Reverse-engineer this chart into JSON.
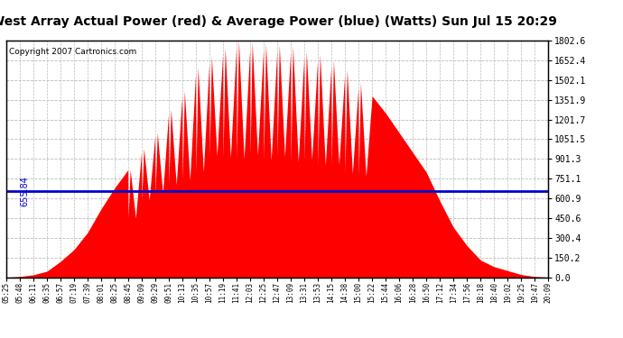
{
  "title": "West Array Actual Power (red) & Average Power (blue) (Watts) Sun Jul 15 20:29",
  "copyright": "Copyright 2007 Cartronics.com",
  "average_power": 655.84,
  "y_max": 1802.6,
  "y_ticks": [
    0.0,
    150.2,
    300.4,
    450.6,
    600.9,
    751.1,
    901.3,
    1051.5,
    1201.7,
    1351.9,
    1502.1,
    1652.4,
    1802.6
  ],
  "x_labels": [
    "05:25",
    "05:48",
    "06:11",
    "06:35",
    "06:57",
    "07:19",
    "07:39",
    "08:01",
    "08:25",
    "08:45",
    "09:09",
    "09:29",
    "09:51",
    "10:13",
    "10:35",
    "10:57",
    "11:19",
    "11:41",
    "12:03",
    "12:25",
    "12:47",
    "13:09",
    "13:31",
    "13:53",
    "14:15",
    "14:38",
    "15:00",
    "15:22",
    "15:44",
    "16:06",
    "16:28",
    "16:50",
    "17:12",
    "17:34",
    "17:56",
    "18:18",
    "18:40",
    "19:02",
    "19:25",
    "19:47",
    "20:09"
  ],
  "bar_color": "#FF0000",
  "line_color": "#0000CC",
  "bg_color": "#FFFFFF",
  "grid_color": "#BBBBBB",
  "title_fontsize": 10,
  "copyright_fontsize": 6.5,
  "avg_label_fontsize": 7,
  "peak_values": [
    0,
    5,
    18,
    45,
    120,
    210,
    340,
    520,
    680,
    820,
    980,
    1100,
    1280,
    1420,
    1600,
    1680,
    1750,
    1802,
    1790,
    1780,
    1770,
    1760,
    1720,
    1700,
    1650,
    1580,
    1480,
    1380,
    1250,
    1100,
    950,
    800,
    580,
    380,
    240,
    130,
    80,
    50,
    20,
    5,
    0
  ],
  "trough_ratios": [
    1.0,
    1.0,
    1.0,
    1.0,
    1.0,
    1.0,
    1.0,
    1.0,
    1.0,
    0.55,
    0.6,
    0.58,
    0.55,
    0.52,
    0.5,
    0.55,
    0.52,
    0.5,
    0.52,
    0.5,
    0.52,
    0.5,
    0.52,
    0.5,
    0.52,
    0.5,
    0.52,
    0.85,
    0.9,
    0.88,
    0.85,
    0.82,
    0.8,
    0.85,
    0.85,
    0.85,
    0.9,
    1.0,
    1.0,
    1.0,
    1.0
  ]
}
